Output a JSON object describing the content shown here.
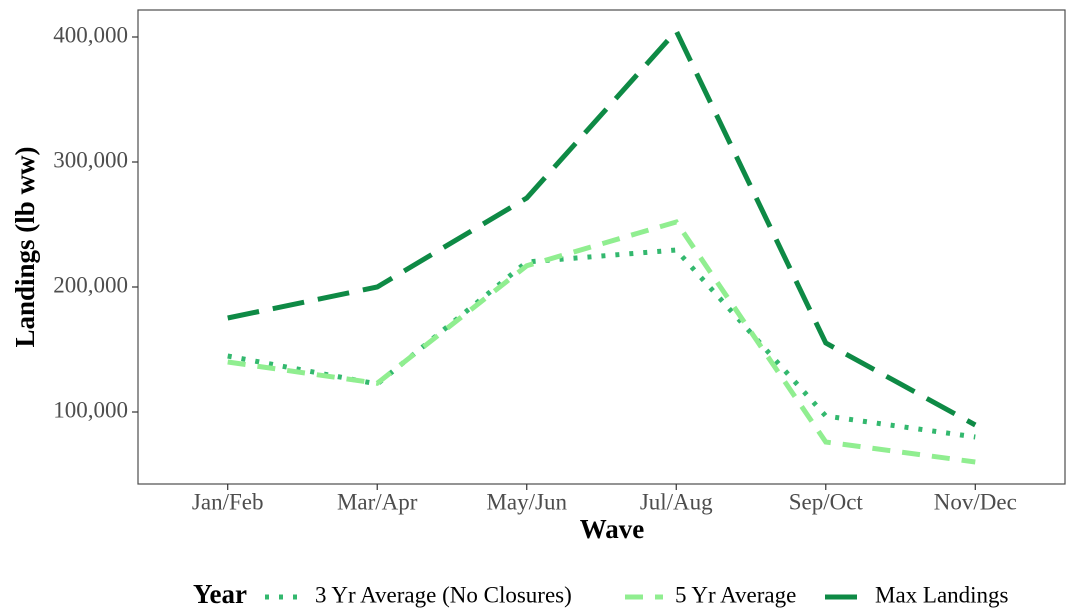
{
  "chart_data": {
    "type": "line",
    "x_label": "Wave",
    "y_label": "Landings (lb ww)",
    "legend_title": "Year",
    "legend_position": "bottom",
    "categories": [
      "Jan/Feb",
      "Mar/Apr",
      "May/Jun",
      "Jul/Aug",
      "Sep/Oct",
      "Nov/Dec"
    ],
    "series": [
      {
        "name": "3 Yr Average (No Closures)",
        "color": "#33b86e",
        "linetype": "dotted",
        "values": [
          144800,
          122400,
          220000,
          229600,
          96800,
          80000
        ]
      },
      {
        "name": "5 Yr Average",
        "color": "#90ee90",
        "linetype": "dashed",
        "values": [
          140000,
          123000,
          217000,
          252000,
          76000,
          60000
        ]
      },
      {
        "name": "Max Landings",
        "color": "#0e8a45",
        "linetype": "longdash",
        "values": [
          175200,
          200000,
          271200,
          404800,
          155200,
          89600
        ]
      }
    ],
    "ylim": [
      42400,
      421600
    ],
    "yticks": [
      {
        "value": 100000,
        "label": "100,000"
      },
      {
        "value": 200000,
        "label": "200,000"
      },
      {
        "value": 300000,
        "label": "300,000"
      },
      {
        "value": 400000,
        "label": "400,000"
      }
    ],
    "grid": false
  }
}
